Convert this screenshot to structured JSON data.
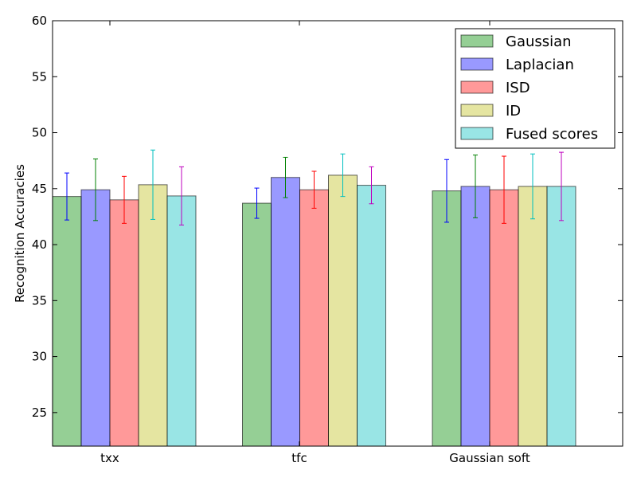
{
  "chart_data": {
    "type": "bar",
    "title": "",
    "xlabel": "",
    "ylabel": "Recognition Accuracies",
    "ylim": [
      22,
      60
    ],
    "yticks": [
      25,
      30,
      35,
      40,
      45,
      50,
      55,
      60
    ],
    "grid": false,
    "legend_position": "top-right",
    "categories": [
      "txx",
      "tfc",
      "Gaussian soft"
    ],
    "series": [
      {
        "name": "Gaussian",
        "color": "#2ca02c",
        "error_color": "#0000ff",
        "values": [
          44.3,
          43.7,
          44.8
        ],
        "errors": [
          2.1,
          1.35,
          2.8
        ]
      },
      {
        "name": "Laplacian",
        "color": "#3333ff",
        "error_color": "#008000",
        "values": [
          44.9,
          46.0,
          45.2
        ],
        "errors": [
          2.75,
          1.8,
          2.8
        ]
      },
      {
        "name": "ISD",
        "color": "#ff3333",
        "error_color": "#ff0000",
        "values": [
          44.0,
          44.9,
          44.9
        ],
        "errors": [
          2.1,
          1.65,
          3.0
        ]
      },
      {
        "name": "ID",
        "color": "#cccc44",
        "error_color": "#00bfbf",
        "values": [
          45.35,
          46.2,
          45.2
        ],
        "errors": [
          3.1,
          1.9,
          2.9
        ]
      },
      {
        "name": "Fused scores",
        "color": "#33cccc",
        "error_color": "#bf00bf",
        "values": [
          44.35,
          45.3,
          45.2
        ],
        "errors": [
          2.6,
          1.65,
          3.05
        ]
      }
    ]
  }
}
